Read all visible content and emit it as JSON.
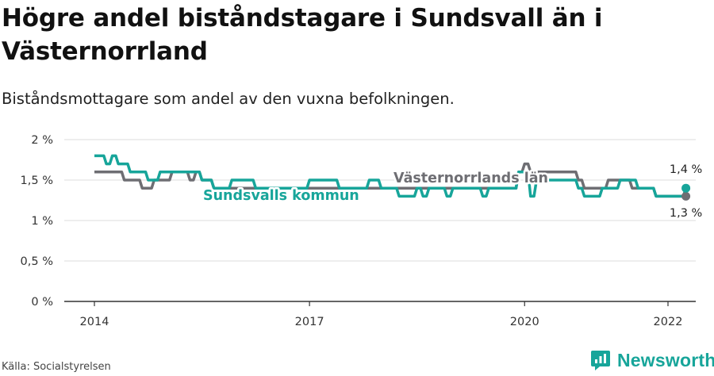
{
  "header": {
    "title": "Högre andel biståndstagare i Sundsvall än i Västernorrland",
    "subtitle": "Biståndsmottagare som andel av den vuxna befolkningen."
  },
  "footer": {
    "source": "Källa: Socialstyrelsen",
    "brand": "Newsworthy",
    "brand_icon": "newsworthy-logo-icon"
  },
  "colors": {
    "teal": "#17a59a",
    "gray": "#6e6e73",
    "grid": "#dddddd",
    "axis": "#333333",
    "text": "#333333"
  },
  "chart_data": {
    "type": "line",
    "title": "Högre andel biståndstagare i Sundsvall än i Västernorrland",
    "subtitle": "Biståndsmottagare som andel av den vuxna befolkningen.",
    "xlabel": "",
    "ylabel": "",
    "x_unit": "month",
    "x_range": [
      "2014-01",
      "2022-12"
    ],
    "x_ticks": [
      {
        "value": "2014-01",
        "label": "2014"
      },
      {
        "value": "2017-01",
        "label": "2017"
      },
      {
        "value": "2020-01",
        "label": "2020"
      },
      {
        "value": "2022-01",
        "label": "2022"
      }
    ],
    "ylim": [
      0,
      2
    ],
    "y_ticks": [
      {
        "value": 0,
        "label": "0 %"
      },
      {
        "value": 0.5,
        "label": "0,5 %"
      },
      {
        "value": 1,
        "label": "1 %"
      },
      {
        "value": 1.5,
        "label": "1,5 %"
      },
      {
        "value": 2,
        "label": "2 %"
      }
    ],
    "grid": "horizontal",
    "legend": "inline labels",
    "series": [
      {
        "name": "Sundsvalls kommun",
        "color": "#17a59a",
        "points": [
          [
            "2014-01",
            1.8
          ],
          [
            "2014-02",
            1.8
          ],
          [
            "2014-03",
            1.7
          ],
          [
            "2014-04",
            1.8
          ],
          [
            "2014-05",
            1.7
          ],
          [
            "2014-06",
            1.7
          ],
          [
            "2014-07",
            1.6
          ],
          [
            "2014-08",
            1.6
          ],
          [
            "2014-09",
            1.6
          ],
          [
            "2014-10",
            1.5
          ],
          [
            "2014-11",
            1.5
          ],
          [
            "2014-12",
            1.6
          ],
          [
            "2015-01",
            1.6
          ],
          [
            "2015-02",
            1.6
          ],
          [
            "2015-03",
            1.6
          ],
          [
            "2015-04",
            1.6
          ],
          [
            "2015-05",
            1.6
          ],
          [
            "2015-06",
            1.6
          ],
          [
            "2015-07",
            1.5
          ],
          [
            "2015-08",
            1.5
          ],
          [
            "2015-09",
            1.4
          ],
          [
            "2015-10",
            1.4
          ],
          [
            "2015-11",
            1.4
          ],
          [
            "2015-12",
            1.5
          ],
          [
            "2016-01",
            1.5
          ],
          [
            "2016-02",
            1.5
          ],
          [
            "2016-03",
            1.5
          ],
          [
            "2016-04",
            1.4
          ],
          [
            "2016-05",
            1.4
          ],
          [
            "2016-06",
            1.4
          ],
          [
            "2016-07",
            1.4
          ],
          [
            "2016-08",
            1.4
          ],
          [
            "2016-09",
            1.4
          ],
          [
            "2016-10",
            1.4
          ],
          [
            "2016-11",
            1.4
          ],
          [
            "2016-12",
            1.4
          ],
          [
            "2017-01",
            1.5
          ],
          [
            "2017-02",
            1.5
          ],
          [
            "2017-03",
            1.5
          ],
          [
            "2017-04",
            1.5
          ],
          [
            "2017-05",
            1.5
          ],
          [
            "2017-06",
            1.4
          ],
          [
            "2017-07",
            1.4
          ],
          [
            "2017-08",
            1.4
          ],
          [
            "2017-09",
            1.4
          ],
          [
            "2017-10",
            1.4
          ],
          [
            "2017-11",
            1.5
          ],
          [
            "2017-12",
            1.5
          ],
          [
            "2018-01",
            1.4
          ],
          [
            "2018-02",
            1.4
          ],
          [
            "2018-03",
            1.4
          ],
          [
            "2018-04",
            1.3
          ],
          [
            "2018-05",
            1.3
          ],
          [
            "2018-06",
            1.3
          ],
          [
            "2018-07",
            1.4
          ],
          [
            "2018-08",
            1.3
          ],
          [
            "2018-09",
            1.4
          ],
          [
            "2018-10",
            1.4
          ],
          [
            "2018-11",
            1.4
          ],
          [
            "2018-12",
            1.3
          ],
          [
            "2019-01",
            1.4
          ],
          [
            "2019-02",
            1.4
          ],
          [
            "2019-03",
            1.4
          ],
          [
            "2019-04",
            1.4
          ],
          [
            "2019-05",
            1.4
          ],
          [
            "2019-06",
            1.3
          ],
          [
            "2019-07",
            1.4
          ],
          [
            "2019-08",
            1.4
          ],
          [
            "2019-09",
            1.4
          ],
          [
            "2019-10",
            1.4
          ],
          [
            "2019-11",
            1.4
          ],
          [
            "2019-12",
            1.6
          ],
          [
            "2020-01",
            1.6
          ],
          [
            "2020-02",
            1.3
          ],
          [
            "2020-03",
            1.5
          ],
          [
            "2020-04",
            1.5
          ],
          [
            "2020-05",
            1.5
          ],
          [
            "2020-06",
            1.5
          ],
          [
            "2020-07",
            1.5
          ],
          [
            "2020-08",
            1.5
          ],
          [
            "2020-09",
            1.5
          ],
          [
            "2020-10",
            1.4
          ],
          [
            "2020-11",
            1.3
          ],
          [
            "2020-12",
            1.3
          ],
          [
            "2021-01",
            1.3
          ],
          [
            "2021-02",
            1.4
          ],
          [
            "2021-03",
            1.4
          ],
          [
            "2021-04",
            1.4
          ],
          [
            "2021-05",
            1.5
          ],
          [
            "2021-06",
            1.5
          ],
          [
            "2021-07",
            1.5
          ],
          [
            "2021-08",
            1.4
          ],
          [
            "2021-09",
            1.4
          ],
          [
            "2021-10",
            1.4
          ],
          [
            "2021-11",
            1.3
          ],
          [
            "2021-12",
            1.3
          ],
          [
            "2022-01",
            1.3
          ],
          [
            "2022-02",
            1.3
          ],
          [
            "2022-03",
            1.3
          ],
          [
            "2022-04",
            1.4
          ]
        ]
      },
      {
        "name": "Västernorrlands län",
        "color": "#6e6e73",
        "points": [
          [
            "2014-01",
            1.6
          ],
          [
            "2014-02",
            1.6
          ],
          [
            "2014-03",
            1.6
          ],
          [
            "2014-04",
            1.6
          ],
          [
            "2014-05",
            1.6
          ],
          [
            "2014-06",
            1.5
          ],
          [
            "2014-07",
            1.5
          ],
          [
            "2014-08",
            1.5
          ],
          [
            "2014-09",
            1.4
          ],
          [
            "2014-10",
            1.4
          ],
          [
            "2014-11",
            1.5
          ],
          [
            "2014-12",
            1.5
          ],
          [
            "2015-01",
            1.5
          ],
          [
            "2015-02",
            1.6
          ],
          [
            "2015-03",
            1.6
          ],
          [
            "2015-04",
            1.6
          ],
          [
            "2015-05",
            1.5
          ],
          [
            "2015-06",
            1.6
          ],
          [
            "2015-07",
            1.5
          ],
          [
            "2015-08",
            1.5
          ],
          [
            "2015-09",
            1.4
          ],
          [
            "2015-10",
            1.4
          ],
          [
            "2015-11",
            1.4
          ],
          [
            "2015-12",
            1.4
          ],
          [
            "2016-01",
            1.4
          ],
          [
            "2016-02",
            1.4
          ],
          [
            "2016-03",
            1.4
          ],
          [
            "2016-04",
            1.4
          ],
          [
            "2016-05",
            1.4
          ],
          [
            "2016-06",
            1.4
          ],
          [
            "2016-07",
            1.4
          ],
          [
            "2016-08",
            1.4
          ],
          [
            "2016-09",
            1.4
          ],
          [
            "2016-10",
            1.4
          ],
          [
            "2016-11",
            1.4
          ],
          [
            "2016-12",
            1.4
          ],
          [
            "2017-01",
            1.4
          ],
          [
            "2017-02",
            1.4
          ],
          [
            "2017-03",
            1.4
          ],
          [
            "2017-04",
            1.4
          ],
          [
            "2017-05",
            1.4
          ],
          [
            "2017-06",
            1.4
          ],
          [
            "2017-07",
            1.4
          ],
          [
            "2017-08",
            1.4
          ],
          [
            "2017-09",
            1.4
          ],
          [
            "2017-10",
            1.4
          ],
          [
            "2017-11",
            1.4
          ],
          [
            "2017-12",
            1.4
          ],
          [
            "2018-01",
            1.4
          ],
          [
            "2018-02",
            1.4
          ],
          [
            "2018-03",
            1.4
          ],
          [
            "2018-04",
            1.4
          ],
          [
            "2018-05",
            1.4
          ],
          [
            "2018-06",
            1.4
          ],
          [
            "2018-07",
            1.4
          ],
          [
            "2018-08",
            1.4
          ],
          [
            "2018-09",
            1.4
          ],
          [
            "2018-10",
            1.4
          ],
          [
            "2018-11",
            1.4
          ],
          [
            "2018-12",
            1.4
          ],
          [
            "2019-01",
            1.4
          ],
          [
            "2019-02",
            1.4
          ],
          [
            "2019-03",
            1.4
          ],
          [
            "2019-04",
            1.4
          ],
          [
            "2019-05",
            1.4
          ],
          [
            "2019-06",
            1.4
          ],
          [
            "2019-07",
            1.4
          ],
          [
            "2019-08",
            1.4
          ],
          [
            "2019-09",
            1.4
          ],
          [
            "2019-10",
            1.4
          ],
          [
            "2019-11",
            1.4
          ],
          [
            "2019-12",
            1.6
          ],
          [
            "2020-01",
            1.7
          ],
          [
            "2020-02",
            1.6
          ],
          [
            "2020-03",
            1.6
          ],
          [
            "2020-04",
            1.6
          ],
          [
            "2020-05",
            1.6
          ],
          [
            "2020-06",
            1.6
          ],
          [
            "2020-07",
            1.6
          ],
          [
            "2020-08",
            1.6
          ],
          [
            "2020-09",
            1.6
          ],
          [
            "2020-10",
            1.5
          ],
          [
            "2020-11",
            1.4
          ],
          [
            "2020-12",
            1.4
          ],
          [
            "2021-01",
            1.4
          ],
          [
            "2021-02",
            1.4
          ],
          [
            "2021-03",
            1.5
          ],
          [
            "2021-04",
            1.5
          ],
          [
            "2021-05",
            1.5
          ],
          [
            "2021-06",
            1.5
          ],
          [
            "2021-07",
            1.4
          ],
          [
            "2021-08",
            1.4
          ],
          [
            "2021-09",
            1.4
          ],
          [
            "2021-10",
            1.4
          ],
          [
            "2021-11",
            1.3
          ],
          [
            "2021-12",
            1.3
          ],
          [
            "2022-01",
            1.3
          ],
          [
            "2022-02",
            1.3
          ],
          [
            "2022-03",
            1.3
          ],
          [
            "2022-04",
            1.3
          ]
        ]
      }
    ],
    "end_labels": [
      {
        "series": "Sundsvalls kommun",
        "text": "1,4 %"
      },
      {
        "series": "Västernorrlands län",
        "text": "1,3 %"
      }
    ]
  }
}
